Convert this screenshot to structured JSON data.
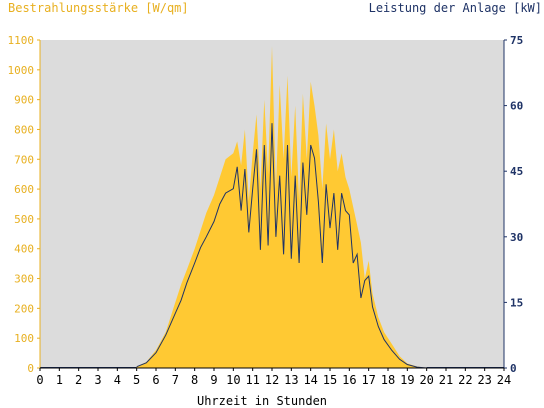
{
  "chart_data": {
    "type": "area",
    "left_axis_title": "Bestrahlungsstärke [W/qm]",
    "right_axis_title": "Leistung der Anlage [kW]",
    "xlabel": "Uhrzeit in Stunden",
    "x_range": [
      0,
      24
    ],
    "y_left_range": [
      0,
      1100
    ],
    "y_right_range": [
      0,
      75
    ],
    "x_ticks": [
      "0",
      "1",
      "2",
      "3",
      "4",
      "5",
      "6",
      "7",
      "8",
      "9",
      "10",
      "11",
      "12",
      "13",
      "14",
      "15",
      "16",
      "17",
      "18",
      "19",
      "20",
      "21",
      "22",
      "23",
      "24"
    ],
    "y_left_ticks": [
      "0",
      "100",
      "200",
      "300",
      "400",
      "500",
      "600",
      "700",
      "800",
      "900",
      "1000",
      "1100"
    ],
    "y_right_ticks": [
      "0",
      "15",
      "30",
      "45",
      "60",
      "75"
    ],
    "grid": false,
    "colors": {
      "irradiance_fill": "#FFC933",
      "power_line": "#1F3366",
      "plot_background": "#DCDCDC",
      "left_axis_text": "#E8B020",
      "right_axis_text": "#1F3366"
    },
    "series": [
      {
        "axis": "left",
        "style": "filled-area",
        "x": [
          5.0,
          5.5,
          6.0,
          6.5,
          7.0,
          7.3,
          7.6,
          8.0,
          8.3,
          8.6,
          9.0,
          9.3,
          9.6,
          10.0,
          10.2,
          10.4,
          10.6,
          10.8,
          11.0,
          11.2,
          11.4,
          11.6,
          11.8,
          12.0,
          12.2,
          12.4,
          12.6,
          12.8,
          13.0,
          13.2,
          13.4,
          13.6,
          13.8,
          14.0,
          14.2,
          14.4,
          14.6,
          14.8,
          15.0,
          15.2,
          15.4,
          15.6,
          15.8,
          16.0,
          16.2,
          16.4,
          16.6,
          16.8,
          17.0,
          17.2,
          17.5,
          17.8,
          18.2,
          18.6,
          19.0,
          19.5,
          20.0
        ],
        "y": [
          5,
          20,
          60,
          120,
          220,
          280,
          330,
          400,
          460,
          520,
          580,
          640,
          700,
          720,
          760,
          680,
          800,
          560,
          720,
          850,
          600,
          900,
          650,
          1080,
          600,
          950,
          700,
          980,
          640,
          880,
          560,
          920,
          700,
          960,
          880,
          780,
          600,
          820,
          700,
          800,
          660,
          720,
          640,
          600,
          540,
          480,
          420,
          300,
          360,
          250,
          170,
          120,
          80,
          40,
          15,
          5,
          0
        ]
      },
      {
        "axis": "right",
        "style": "line",
        "x": [
          5.0,
          5.5,
          6.0,
          6.5,
          7.0,
          7.3,
          7.6,
          8.0,
          8.3,
          8.6,
          9.0,
          9.3,
          9.6,
          10.0,
          10.2,
          10.4,
          10.6,
          10.8,
          11.0,
          11.2,
          11.4,
          11.6,
          11.8,
          12.0,
          12.2,
          12.4,
          12.6,
          12.8,
          13.0,
          13.2,
          13.4,
          13.6,
          13.8,
          14.0,
          14.2,
          14.4,
          14.6,
          14.8,
          15.0,
          15.2,
          15.4,
          15.6,
          15.8,
          16.0,
          16.2,
          16.4,
          16.6,
          16.8,
          17.0,
          17.2,
          17.5,
          17.8,
          18.2,
          18.6,
          19.0,
          19.5,
          20.0
        ],
        "y": [
          0.3,
          1.2,
          3.5,
          7.5,
          12.5,
          15.5,
          19.5,
          24.0,
          27.5,
          30.0,
          33.5,
          37.5,
          40.0,
          41.0,
          46.0,
          36.0,
          45.5,
          31.0,
          41.0,
          50.0,
          27.0,
          51.0,
          28.0,
          56.0,
          30.0,
          44.0,
          26.0,
          51.0,
          25.0,
          44.0,
          24.0,
          47.0,
          35.0,
          51.0,
          48.0,
          38.0,
          24.0,
          42.0,
          32.0,
          40.0,
          27.0,
          40.0,
          36.0,
          35.0,
          24.0,
          26.0,
          16.0,
          20.0,
          21.0,
          14.0,
          9.5,
          6.5,
          4.0,
          2.0,
          0.8,
          0.2,
          0.0
        ]
      }
    ]
  }
}
